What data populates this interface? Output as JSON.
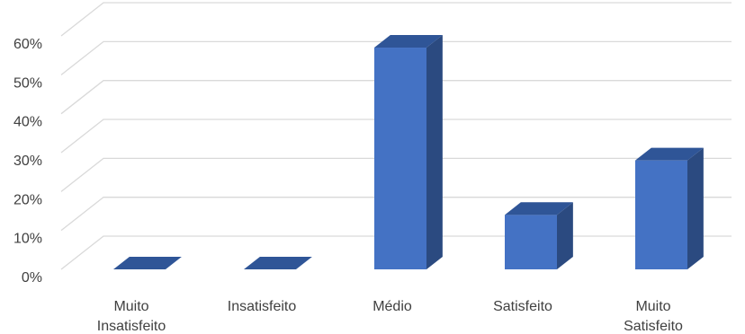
{
  "chart_data": {
    "type": "bar",
    "style": "3d-column",
    "title": "",
    "xlabel": "",
    "ylabel": "",
    "ylim": [
      0,
      60
    ],
    "yticks": [
      "0%",
      "10%",
      "20%",
      "30%",
      "40%",
      "50%",
      "60%"
    ],
    "categories": [
      [
        "Muito",
        "Insatisfeito"
      ],
      [
        "Insatisfeito"
      ],
      [
        "Médio"
      ],
      [
        "Satisfeito"
      ],
      [
        "Muito",
        "Satisfeito"
      ]
    ],
    "values": [
      0,
      0,
      57,
      14,
      28
    ],
    "grid": true,
    "legend": "none",
    "colors": {
      "front": "#4472c4",
      "side": "#2b4a80",
      "top": "#2f5597",
      "grid": "#d9d9d9",
      "text": "#404040"
    }
  }
}
